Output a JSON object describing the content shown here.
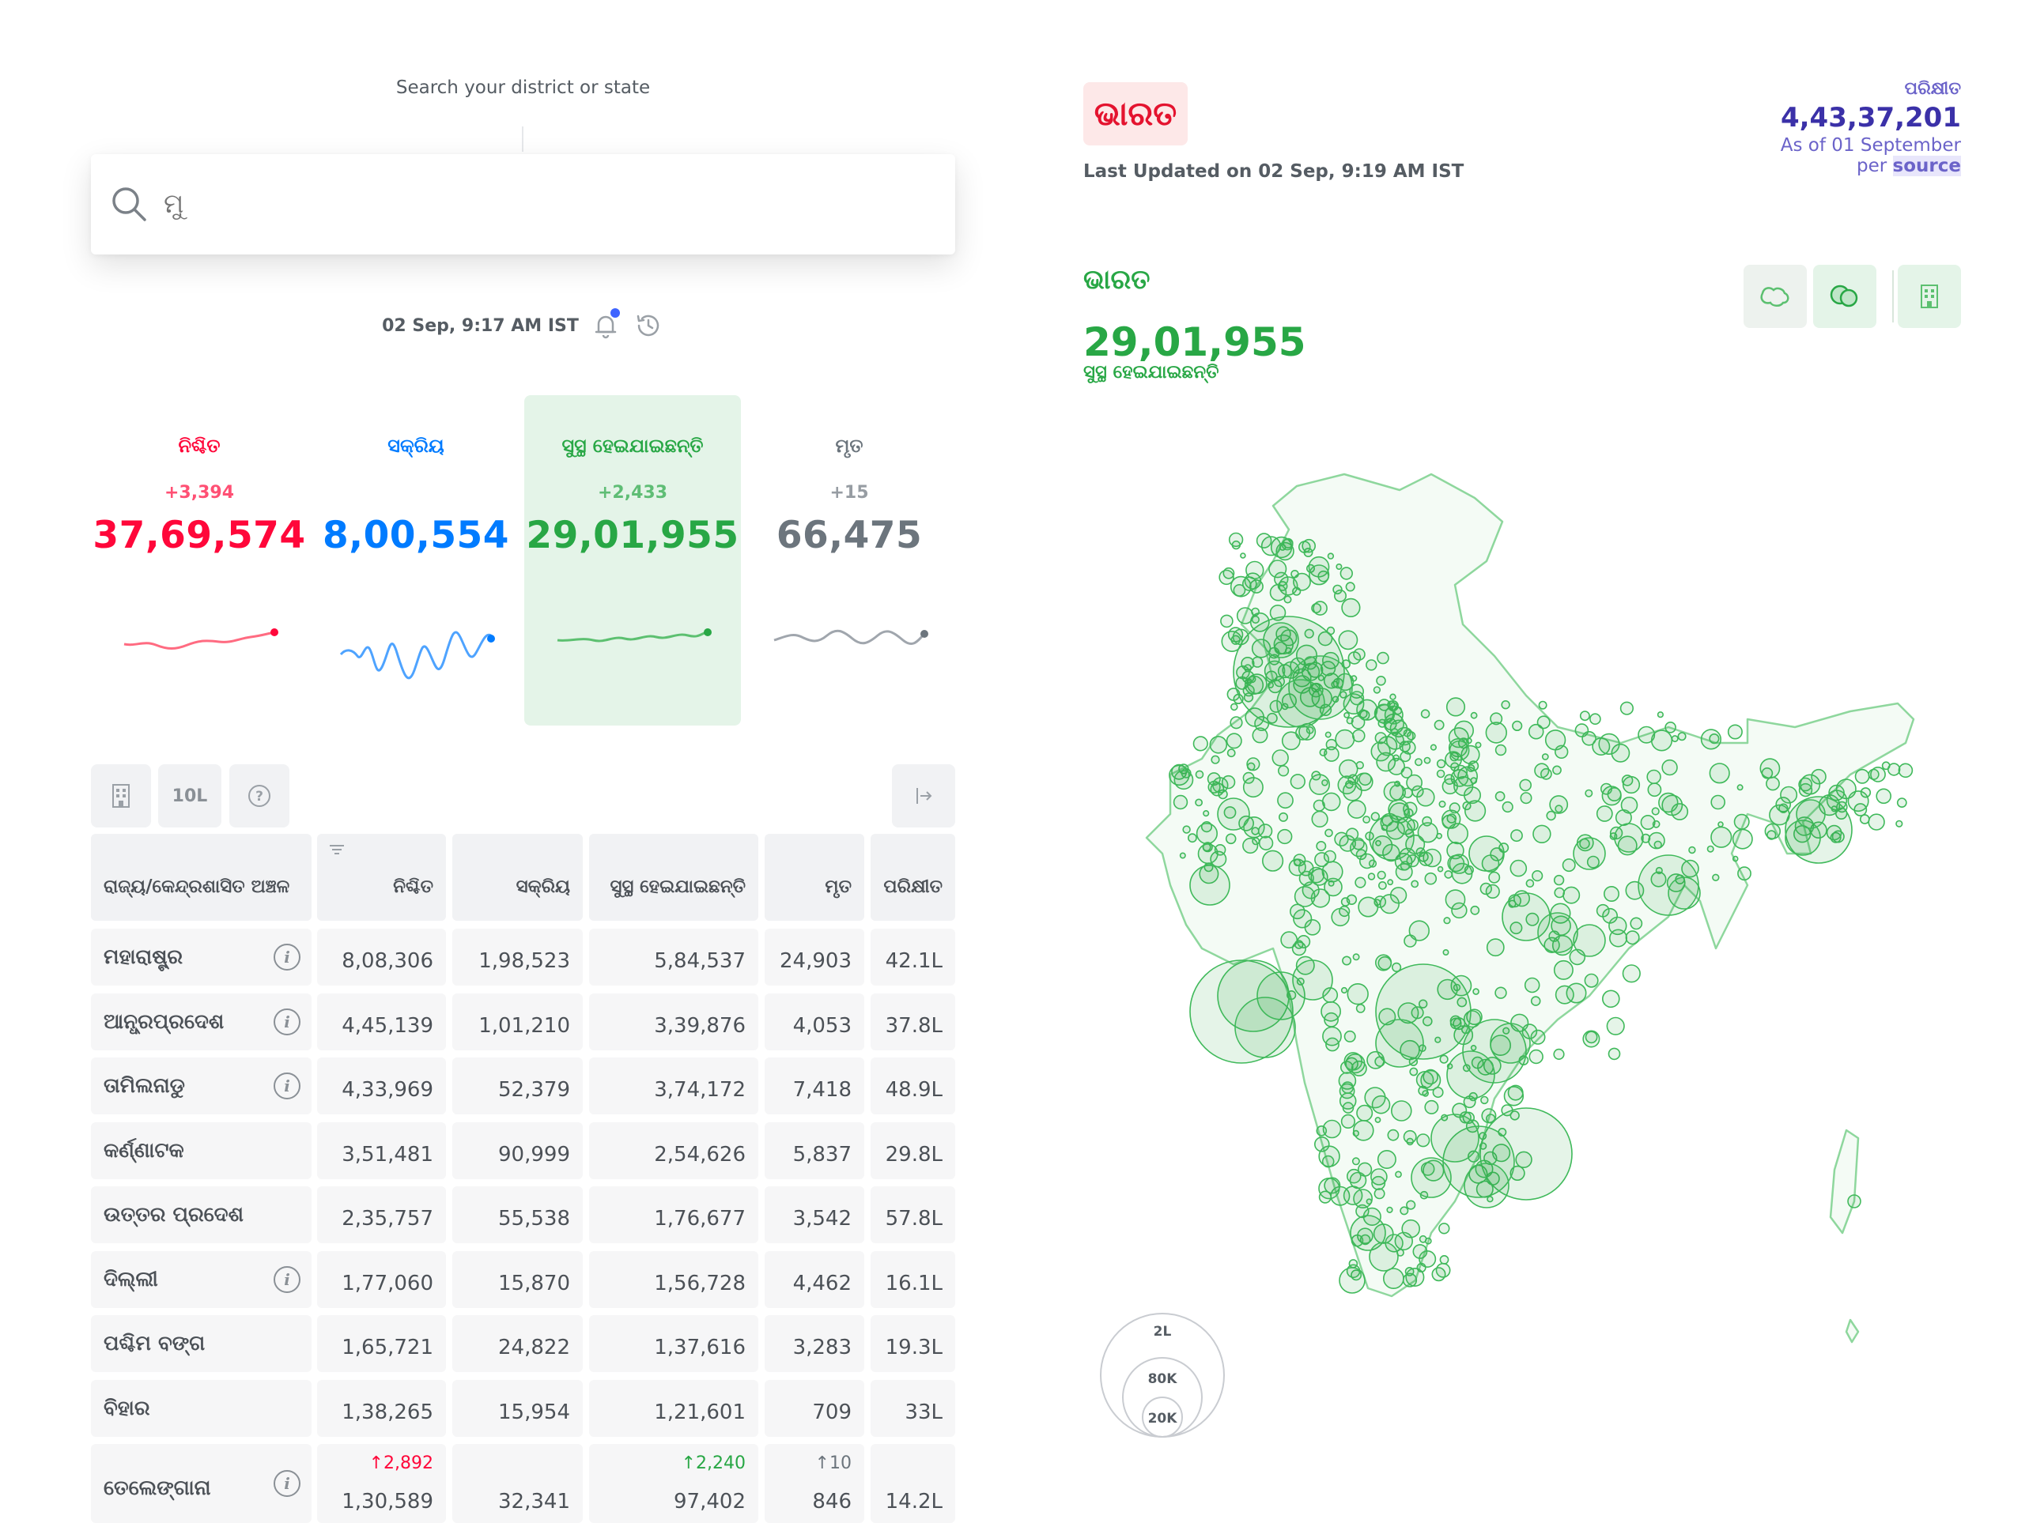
{
  "search": {
    "label": "Search your district or state",
    "placeholder": "ମୁ"
  },
  "update": {
    "timestamp": "02 Sep, 9:17 AM IST"
  },
  "stats": [
    {
      "title": "ନିଶ୍ଚିତ",
      "delta": "+3,394",
      "total": "37,69,574",
      "color": "#ff073a",
      "active": false
    },
    {
      "title": "ସକ୍ରିୟ",
      "delta": "",
      "total": "8,00,554",
      "color": "#007bff",
      "active": false
    },
    {
      "title": "ସୁସ୍ଥ ହେଇଯାଇଛନ୍ତି",
      "delta": "+2,433",
      "total": "29,01,955",
      "color": "#28a745",
      "active": true
    },
    {
      "title": "ମୃତ",
      "delta": "+15",
      "total": "66,475",
      "color": "#6c757d",
      "active": false
    }
  ],
  "toolbar": {
    "per_lakh_label": "10L",
    "help_icon": "question-icon",
    "district_icon": "building-icon",
    "expand_icon": "expand-table-icon"
  },
  "table": {
    "headers": [
      "ରାଜ୍ୟ/କେନ୍ଦ୍ରଶାସିତ ଅଞ୍ଚଳ",
      "ନିଶ୍ଚିତ",
      "ସକ୍ରିୟ",
      "ସୁସ୍ଥ ହେଇଯାଇଛନ୍ତି",
      "ମୃତ",
      "ପରିକ୍ଷୀତ"
    ],
    "rows": [
      {
        "state": "ମହାରାଷ୍ଟ୍ର",
        "info": true,
        "confirmed": "8,08,306",
        "active": "1,98,523",
        "recovered": "5,84,537",
        "deceased": "24,903",
        "tested": "42.1L"
      },
      {
        "state": "ଆନ୍ଧ୍ରପ୍ରଦେଶ",
        "info": true,
        "confirmed": "4,45,139",
        "active": "1,01,210",
        "recovered": "3,39,876",
        "deceased": "4,053",
        "tested": "37.8L"
      },
      {
        "state": "ତାମିଲନାଡୁ",
        "info": true,
        "confirmed": "4,33,969",
        "active": "52,379",
        "recovered": "3,74,172",
        "deceased": "7,418",
        "tested": "48.9L"
      },
      {
        "state": "କର୍ଣ୍ଣାଟକ",
        "info": false,
        "confirmed": "3,51,481",
        "active": "90,999",
        "recovered": "2,54,626",
        "deceased": "5,837",
        "tested": "29.8L"
      },
      {
        "state": "ଉତ୍ତର ପ୍ରଦେଶ",
        "info": false,
        "confirmed": "2,35,757",
        "active": "55,538",
        "recovered": "1,76,677",
        "deceased": "3,542",
        "tested": "57.8L"
      },
      {
        "state": "ଦିଲ୍ଲୀ",
        "info": true,
        "confirmed": "1,77,060",
        "active": "15,870",
        "recovered": "1,56,728",
        "deceased": "4,462",
        "tested": "16.1L"
      },
      {
        "state": "ପଶ୍ଚିମ ବଙ୍ଗ",
        "info": false,
        "confirmed": "1,65,721",
        "active": "24,822",
        "recovered": "1,37,616",
        "deceased": "3,283",
        "tested": "19.3L"
      },
      {
        "state": "ବିହାର",
        "info": false,
        "confirmed": "1,38,265",
        "active": "15,954",
        "recovered": "1,21,601",
        "deceased": "709",
        "tested": "33L"
      },
      {
        "state": "ତେଲେଙ୍ଗାନା",
        "info": true,
        "confirmed": "1,30,589",
        "active": "32,341",
        "recovered": "97,402",
        "deceased": "846",
        "tested": "14.2L",
        "delta_confirmed": "↑2,892",
        "delta_recovered": "↑2,240",
        "delta_deceased": "↑10"
      }
    ]
  },
  "region": {
    "badge": "ଭାରତ",
    "last_updated": "Last Updated on 02 Sep, 9:19 AM IST",
    "tested_label": "ପରିକ୍ଷୀତ",
    "tested_value": "4,43,37,201",
    "tested_asof": "As of 01 September",
    "tested_per": "per",
    "tested_source": "source"
  },
  "map": {
    "state": "ଭାରତ",
    "value": "29,01,955",
    "statistic": "ସୁସ୍ଥ ହେଇଯାଇଛନ୍ତି",
    "legend": [
      "2L",
      "80K",
      "20K"
    ],
    "accent": "#28a745"
  }
}
